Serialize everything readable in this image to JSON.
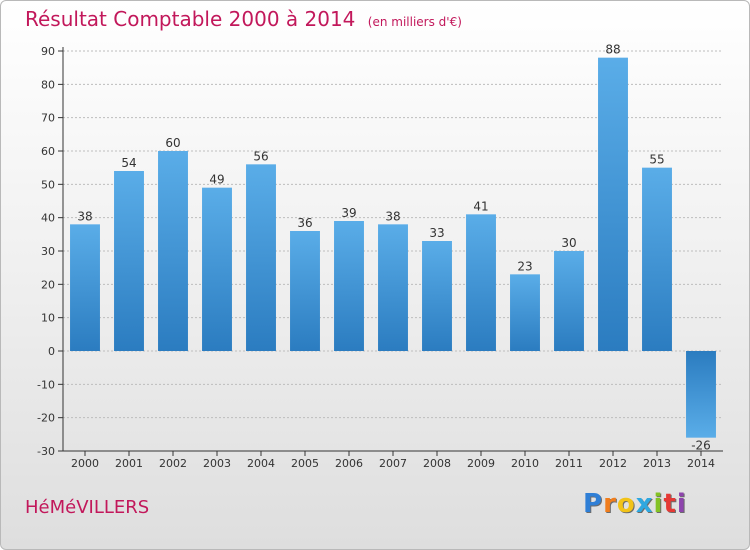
{
  "title": {
    "main": "Résultat Comptable 2000 à 2014",
    "unit": "(en milliers d'€)"
  },
  "town": "HéMéVILLERS",
  "logo": {
    "letters": [
      "P",
      "r",
      "o",
      "x",
      "i",
      "t",
      "i"
    ],
    "colors": [
      "#2f7fd6",
      "#f07d1c",
      "#f2c318",
      "#2fa8e0",
      "#84c225",
      "#e53935",
      "#8e44ad"
    ]
  },
  "colors": {
    "bar_light": "#5aade8",
    "bar_dark": "#2b7cc0",
    "axis": "#333333",
    "grid": "#bdbdbd",
    "text": "#333333"
  },
  "chart_data": {
    "type": "bar",
    "title": "Résultat Comptable 2000 à 2014",
    "subtitle": "(en milliers d'€)",
    "categories": [
      "2000",
      "2001",
      "2002",
      "2003",
      "2004",
      "2005",
      "2006",
      "2007",
      "2008",
      "2009",
      "2010",
      "2011",
      "2012",
      "2013",
      "2014"
    ],
    "values": [
      38,
      54,
      60,
      49,
      56,
      36,
      39,
      38,
      33,
      41,
      23,
      30,
      88,
      55,
      -26
    ],
    "data_labels": [
      "38",
      "54",
      "60",
      "49",
      "56",
      "36",
      "39",
      "38",
      "33",
      "41",
      "23",
      "30",
      "88",
      "55",
      "-26"
    ],
    "ylim": [
      -30,
      90
    ],
    "yticks": [
      -30,
      -20,
      -10,
      0,
      10,
      20,
      30,
      40,
      50,
      60,
      70,
      80,
      90
    ],
    "ytick_labels": [
      "-30",
      "-20",
      "-10",
      "0",
      "10",
      "20",
      "30",
      "40",
      "50",
      "60",
      "70",
      "80",
      "90"
    ],
    "grid": true,
    "xlabel": "",
    "ylabel": ""
  }
}
